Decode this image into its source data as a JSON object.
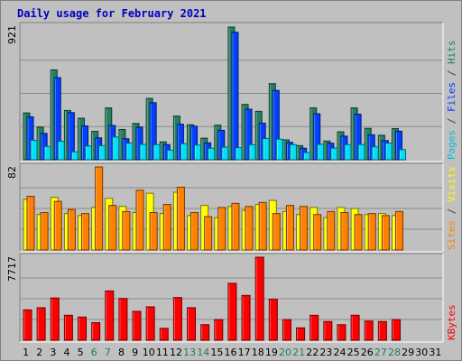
{
  "chart_data": {
    "title": "Daily usage for February 2021",
    "type": "bar",
    "days": [
      "1",
      "2",
      "3",
      "4",
      "5",
      "6",
      "7",
      "8",
      "9",
      "10",
      "11",
      "12",
      "13",
      "14",
      "15",
      "16",
      "17",
      "18",
      "19",
      "20",
      "21",
      "22",
      "23",
      "24",
      "25",
      "26",
      "27",
      "28",
      "29",
      "30",
      "31"
    ],
    "weekend_days": [
      "6",
      "7",
      "13",
      "14",
      "20",
      "21",
      "27",
      "28"
    ],
    "grid": true,
    "panels": [
      {
        "name": "hits-files-pages",
        "max_label": "921",
        "ylim": [
          0,
          921
        ],
        "right_labels": [
          {
            "text": "Pages",
            "color": "#00c0d8"
          },
          {
            "text": " / ",
            "color": "#404040"
          },
          {
            "text": "Files",
            "color": "#0040ff"
          },
          {
            "text": " / ",
            "color": "#404040"
          },
          {
            "text": "Hits",
            "color": "#208060"
          }
        ],
        "series": [
          {
            "name": "Hits",
            "color": "#208060",
            "values": [
              325,
              226,
              624,
              342,
              288,
              197,
              360,
              210,
              252,
              426,
              124,
              303,
              243,
              150,
              240,
              921,
              384,
              336,
              528,
              138,
              98,
              360,
              130,
              194,
              360,
              218,
              170,
              216,
              null,
              null,
              null
            ]
          },
          {
            "name": "Files",
            "color": "#0040ff",
            "values": [
              298,
              183,
              570,
              327,
              235,
              152,
              238,
              146,
              226,
              396,
              105,
              247,
              233,
              117,
              204,
              885,
              351,
              254,
              481,
              121,
              80,
              319,
              115,
              164,
              316,
              173,
              133,
              198,
              null,
              null,
              null
            ]
          },
          {
            "name": "Pages",
            "color": "#00e0f8",
            "values": [
              135,
              92,
              128,
              55,
              95,
              98,
              158,
              115,
              107,
              105,
              67,
              112,
              102,
              80,
              87,
              84,
              105,
              147,
              143,
              105,
              50,
              107,
              81,
              105,
              106,
              90,
              115,
              70,
              null,
              null,
              null
            ]
          }
        ]
      },
      {
        "name": "visits-sites",
        "max_label": "82",
        "ylim": [
          0,
          82
        ],
        "right_labels": [
          {
            "text": "Sites",
            "color": "#ff8000"
          },
          {
            "text": " / ",
            "color": "#404040"
          },
          {
            "text": "Visits",
            "color": "#ffff00"
          }
        ],
        "series": [
          {
            "name": "Visits",
            "color": "#ffff00",
            "values": [
              50,
              35,
              52,
              36,
              34,
              42,
              51,
              43,
              37,
              56,
              36,
              57,
              34,
              44,
              32,
              43,
              39,
              45,
              49,
              38,
              35,
              42,
              32,
              42,
              41,
              35,
              36,
              34,
              null,
              null,
              null
            ]
          },
          {
            "name": "Sites",
            "color": "#ff8000",
            "values": [
              53,
              37,
              48,
              40,
              36,
              82,
              44,
              38,
              59,
              37,
              45,
              62,
              37,
              33,
              42,
              46,
              43,
              47,
              36,
              44,
              43,
              35,
              38,
              37,
              35,
              36,
              34,
              38,
              null,
              null,
              null
            ]
          }
        ]
      },
      {
        "name": "kbytes",
        "max_label": "7717",
        "ylim": [
          0,
          7717
        ],
        "right_labels": [
          {
            "text": "KBytes",
            "color": "#ff0000"
          }
        ],
        "series": [
          {
            "name": "KBytes",
            "color": "#ff0000",
            "values": [
              2825,
              3024,
              3929,
              2322,
              2154,
              1633,
              4580,
              3882,
              2682,
              3104,
              1106,
              3973,
              3024,
              1445,
              1916,
              5293,
              4168,
              7717,
              3800,
              1916,
              1151,
              2322,
              1739,
              1445,
              2322,
              1784,
              1739,
              1916,
              null,
              null,
              null
            ]
          }
        ]
      }
    ]
  }
}
